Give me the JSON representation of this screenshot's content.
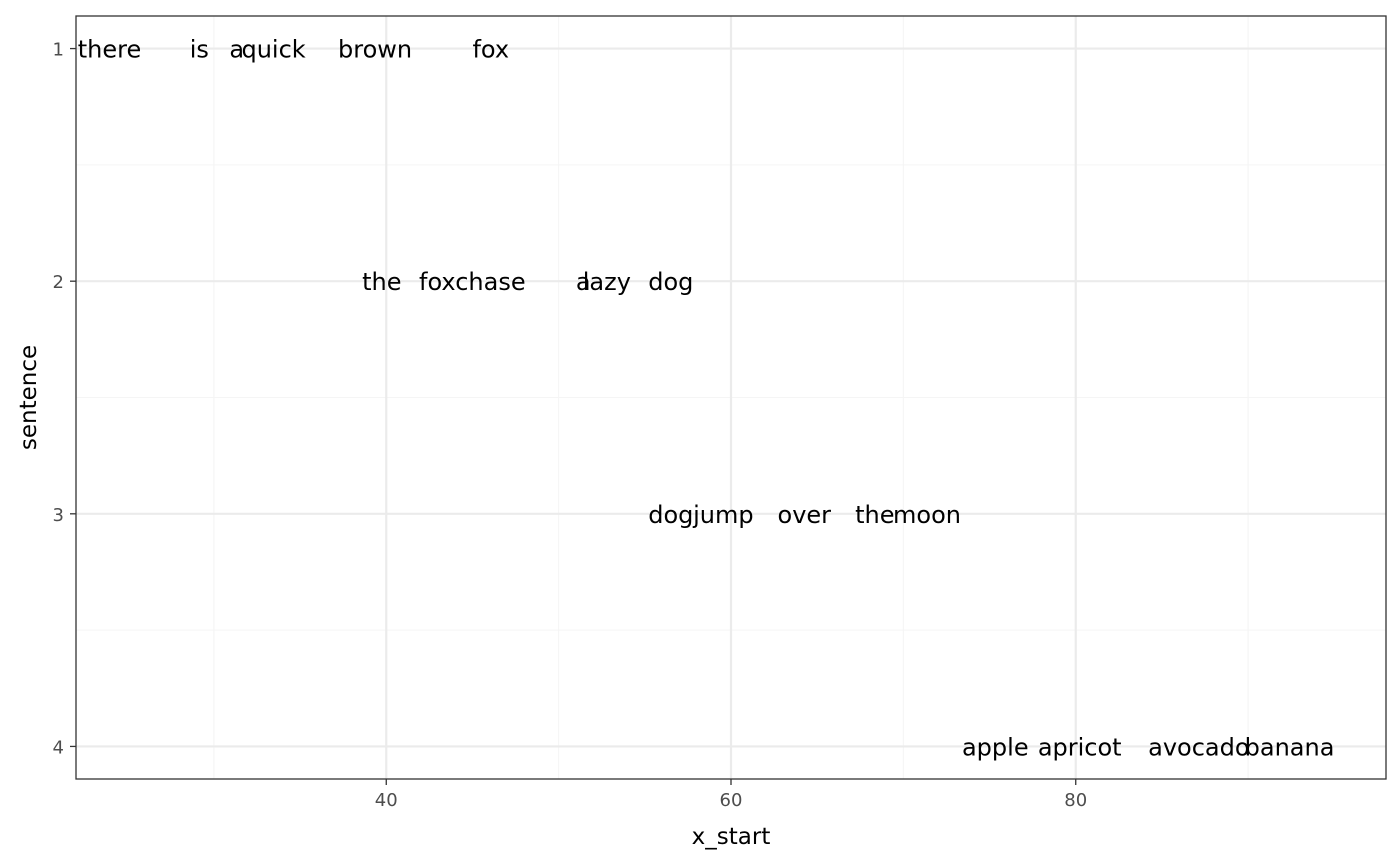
{
  "chart_data": {
    "type": "scatter",
    "title": "",
    "xlabel": "x_start",
    "ylabel": "sentence",
    "xlim": [
      22,
      98
    ],
    "ylim": [
      4.14,
      0.86
    ],
    "y_reversed": true,
    "grid": true,
    "legend": "none",
    "x_ticks": [
      {
        "value": 40,
        "label": "40"
      },
      {
        "value": 60,
        "label": "60"
      },
      {
        "value": 80,
        "label": "80"
      }
    ],
    "x_minor_ticks": [
      30,
      50,
      70,
      90
    ],
    "y_ticks": [
      {
        "value": 1,
        "label": "1"
      },
      {
        "value": 2,
        "label": "2"
      },
      {
        "value": 3,
        "label": "3"
      },
      {
        "value": 4,
        "label": "4"
      }
    ],
    "y_minor_ticks": [
      1.5,
      2.5,
      3.5
    ],
    "points": [
      {
        "x": 22.1,
        "y": 1,
        "label": "there"
      },
      {
        "x": 28.6,
        "y": 1,
        "label": "is"
      },
      {
        "x": 30.9,
        "y": 1,
        "label": "a"
      },
      {
        "x": 31.6,
        "y": 1,
        "label": "quick"
      },
      {
        "x": 37.2,
        "y": 1,
        "label": "brown"
      },
      {
        "x": 45.0,
        "y": 1,
        "label": "fox"
      },
      {
        "x": 38.6,
        "y": 2,
        "label": "the"
      },
      {
        "x": 41.9,
        "y": 2,
        "label": "fox"
      },
      {
        "x": 44.0,
        "y": 2,
        "label": "chase"
      },
      {
        "x": 51.0,
        "y": 2,
        "label": "a"
      },
      {
        "x": 51.4,
        "y": 2,
        "label": "lazy"
      },
      {
        "x": 55.2,
        "y": 2,
        "label": "dog"
      },
      {
        "x": 55.2,
        "y": 3,
        "label": "dog"
      },
      {
        "x": 57.8,
        "y": 3,
        "label": "jump"
      },
      {
        "x": 62.7,
        "y": 3,
        "label": "over"
      },
      {
        "x": 67.2,
        "y": 3,
        "label": "the"
      },
      {
        "x": 69.4,
        "y": 3,
        "label": "moon"
      },
      {
        "x": 73.4,
        "y": 4,
        "label": "apple"
      },
      {
        "x": 77.8,
        "y": 4,
        "label": "apricot"
      },
      {
        "x": 84.2,
        "y": 4,
        "label": "avocado"
      },
      {
        "x": 89.8,
        "y": 4,
        "label": "banana"
      }
    ],
    "colors": {
      "panel_border": "#333333",
      "grid_major": "#ebebeb",
      "grid_minor": "#f5f5f5",
      "tick_text": "#4d4d4d",
      "text": "#000000"
    }
  }
}
